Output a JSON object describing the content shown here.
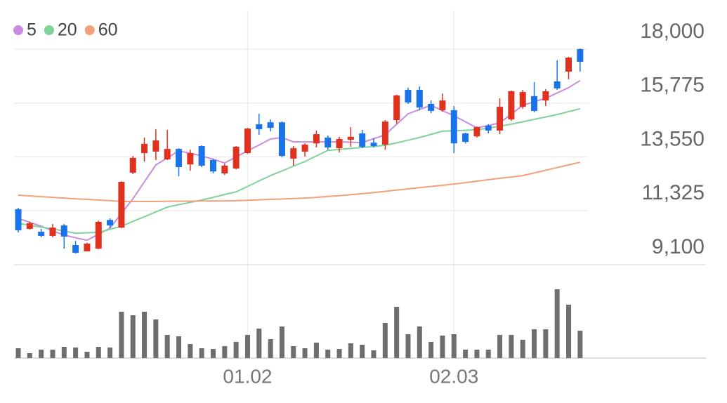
{
  "chart_data": {
    "type": "candlestick",
    "categories": [
      null,
      null,
      null,
      null,
      null,
      null,
      null,
      null,
      null,
      null,
      null,
      null,
      null,
      null,
      null,
      null,
      null,
      null,
      null,
      null,
      "01.02",
      null,
      null,
      null,
      null,
      null,
      null,
      null,
      null,
      null,
      null,
      null,
      null,
      null,
      null,
      null,
      null,
      null,
      "02.03",
      null,
      null,
      null,
      null,
      null,
      null,
      null,
      null,
      null,
      null,
      null
    ],
    "open": [
      11390,
      10580,
      10460,
      10290,
      10720,
      9910,
      9650,
      9760,
      10950,
      10630,
      12900,
      13710,
      13770,
      13450,
      13880,
      13240,
      14000,
      13420,
      12870,
      13070,
      13710,
      14900,
      14980,
      14980,
      13480,
      13770,
      14110,
      14350,
      13910,
      14260,
      14520,
      14140,
      14060,
      15070,
      16320,
      16320,
      15740,
      15480,
      15480,
      14520,
      14400,
      14840,
      14640,
      15100,
      15620,
      16060,
      15880,
      16670,
      17070,
      18000
    ],
    "high": [
      11450,
      10870,
      10580,
      10780,
      10780,
      10080,
      10000,
      10920,
      11010,
      12550,
      13590,
      14350,
      14690,
      14670,
      13910,
      13850,
      14030,
      13480,
      13270,
      14000,
      14750,
      15330,
      15100,
      15010,
      14000,
      14110,
      14640,
      14430,
      14380,
      14780,
      14670,
      14320,
      15070,
      16120,
      16410,
      16460,
      15880,
      16170,
      15650,
      14550,
      14810,
      14900,
      15970,
      16290,
      16320,
      16640,
      16350,
      17540,
      17680,
      18030
    ],
    "low": [
      10430,
      10550,
      10230,
      10230,
      9760,
      9560,
      9650,
      9740,
      10610,
      10610,
      12840,
      13360,
      13420,
      13420,
      12750,
      12980,
      13130,
      12870,
      12810,
      13040,
      13680,
      14460,
      14610,
      13530,
      13190,
      13560,
      13940,
      13850,
      13740,
      13970,
      13910,
      13940,
      13850,
      14930,
      15740,
      15480,
      15360,
      15420,
      13710,
      14110,
      14350,
      14520,
      14490,
      15040,
      15540,
      15390,
      15650,
      16320,
      16750,
      17070
    ],
    "close": [
      10520,
      10810,
      10290,
      10630,
      10260,
      9590,
      9970,
      10870,
      10720,
      12520,
      13510,
      14090,
      14230,
      13880,
      13130,
      13710,
      13190,
      12950,
      13190,
      13970,
      14720,
      14690,
      14750,
      13590,
      13910,
      14060,
      14490,
      13940,
      14290,
      14380,
      13970,
      14000,
      15010,
      16090,
      15800,
      15590,
      15450,
      15880,
      14110,
      14170,
      14780,
      14640,
      15620,
      16260,
      16230,
      15450,
      16260,
      16380,
      17650,
      17480
    ],
    "up_color": "#e0301e",
    "down_color": "#1a73e8",
    "ylim": [
      9100,
      18000
    ],
    "yticks": [
      {
        "value": 9100,
        "label": "9,100"
      },
      {
        "value": 11325,
        "label": "11,325"
      },
      {
        "value": 13550,
        "label": "13,550"
      },
      {
        "value": 15775,
        "label": "15,775"
      },
      {
        "value": 18000,
        "label": "18,000"
      }
    ],
    "grid": true,
    "series": [
      {
        "name": "5",
        "color": "#c98be0",
        "values": [
          11010,
          10850,
          10690,
          10500,
          10320,
          10210,
          10110,
          10360,
          10610,
          11220,
          11820,
          12520,
          13220,
          13510,
          13800,
          13700,
          13590,
          13450,
          13300,
          13550,
          13800,
          14040,
          14290,
          14350,
          14170,
          14170,
          14170,
          14170,
          14170,
          14160,
          14140,
          14300,
          14460,
          14900,
          15330,
          15510,
          15680,
          15460,
          15250,
          15000,
          14750,
          14850,
          14960,
          15320,
          15680,
          15830,
          15970,
          16190,
          16410,
          16700
        ]
      },
      {
        "name": "20",
        "color": "#7fd39a",
        "values": [
          10810,
          10730,
          10650,
          10580,
          10490,
          10400,
          10420,
          10430,
          10560,
          10690,
          10890,
          11080,
          11280,
          11480,
          11580,
          11670,
          11770,
          11880,
          12000,
          12110,
          12330,
          12560,
          12780,
          12970,
          13170,
          13360,
          13590,
          13820,
          13860,
          13900,
          13940,
          13980,
          14030,
          14130,
          14240,
          14350,
          14480,
          14610,
          14630,
          14650,
          14670,
          14740,
          14820,
          14900,
          15000,
          15100,
          15200,
          15300,
          15420,
          15540
        ]
      },
      {
        "name": "60",
        "color": "#f2a07b",
        "values": [
          11970,
          11940,
          11910,
          11880,
          11850,
          11820,
          11800,
          11770,
          11740,
          11710,
          11710,
          11710,
          11710,
          11720,
          11720,
          11720,
          11730,
          11730,
          11730,
          11740,
          11760,
          11780,
          11800,
          11810,
          11830,
          11850,
          11880,
          11920,
          11950,
          11990,
          12030,
          12080,
          12130,
          12180,
          12230,
          12280,
          12330,
          12380,
          12430,
          12490,
          12550,
          12610,
          12670,
          12720,
          12780,
          12890,
          13000,
          13110,
          13220,
          13330
        ]
      }
    ],
    "volume": {
      "color": "#6e6e6e",
      "ylim": [
        0,
        130
      ],
      "values": [
        14,
        7,
        12,
        12,
        16,
        15,
        9,
        16,
        15,
        66,
        61,
        66,
        55,
        33,
        31,
        20,
        14,
        13,
        17,
        23,
        33,
        42,
        27,
        45,
        17,
        14,
        22,
        12,
        13,
        21,
        19,
        11,
        50,
        73,
        34,
        45,
        23,
        32,
        34,
        12,
        12,
        12,
        33,
        33,
        26,
        41,
        41,
        98,
        76,
        39
      ]
    }
  }
}
